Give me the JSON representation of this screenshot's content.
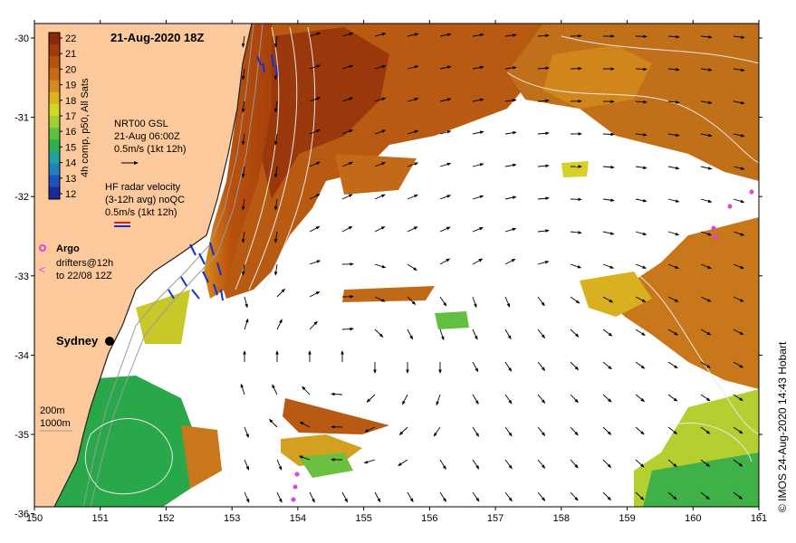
{
  "title": "21-Aug-2020 18Z",
  "credit": "© IMOS 24-Aug-2020 14:43 Hobart",
  "colorbar": {
    "label": "4h comp, p50, All Sats",
    "ticks": [
      "22",
      "21",
      "20",
      "19",
      "18",
      "17",
      "16",
      "15",
      "14",
      "13",
      "12"
    ],
    "colors": [
      "#8a2a0a",
      "#a23a0c",
      "#b8520f",
      "#c86a18",
      "#d48a22",
      "#dcb020",
      "#d0d820",
      "#9ed030",
      "#5ec040",
      "#30b050",
      "#20a0a0",
      "#2080c0",
      "#2050c0",
      "#1a2a9a"
    ]
  },
  "legend": {
    "gsl": {
      "title": "NRT00 GSL",
      "date": "21-Aug 06:00Z",
      "scale": "0.5m/s (1kt 12h)"
    },
    "hf": {
      "title": "HF radar velocity",
      "avg": "(3-12h avg) noQC",
      "scale": "0.5m/s (1kt 12h)"
    },
    "argo": {
      "title": "Argo",
      "drifters": "drifters@12h",
      "until": "to 22/08 12Z"
    },
    "depth": {
      "d200": "200m",
      "d1000": "1000m"
    }
  },
  "place": {
    "sydney": "Sydney"
  },
  "axes": {
    "x_ticks": [
      "150",
      "151",
      "152",
      "153",
      "154",
      "155",
      "156",
      "157",
      "158",
      "159",
      "160",
      "161"
    ],
    "y_ticks": [
      "-30",
      "-31",
      "-32",
      "-33",
      "-34",
      "-35",
      "-36"
    ]
  },
  "colors": {
    "land": "#fbc99c",
    "warm_sst": "#b0500c",
    "cool_sst": "#28a848",
    "hf_radar": "#1030d8",
    "argo": "#e040e0"
  }
}
